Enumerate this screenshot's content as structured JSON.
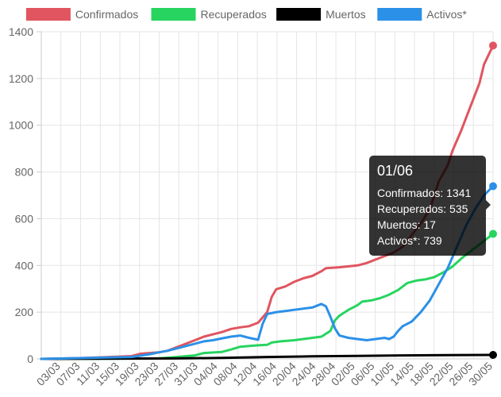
{
  "chart_data": {
    "type": "line",
    "ylim": [
      0,
      1400
    ],
    "y_ticks": [
      0,
      200,
      400,
      600,
      800,
      1000,
      1200,
      1400
    ],
    "x_tick_labels": [
      "03/03",
      "07/03",
      "11/03",
      "15/03",
      "19/03",
      "23/03",
      "27/03",
      "31/03",
      "04/04",
      "08/04",
      "12/04",
      "16/04",
      "20/04",
      "24/04",
      "28/04",
      "02/05",
      "06/05",
      "10/05",
      "14/05",
      "18/05",
      "22/05",
      "26/05",
      "30/05"
    ],
    "grid": true,
    "legend_position": "top",
    "series": [
      {
        "name": "Confirmados",
        "color": "#e0555f",
        "points": [
          [
            0,
            0
          ],
          [
            8,
            3
          ],
          [
            14,
            7
          ],
          [
            20,
            12
          ],
          [
            22,
            22
          ],
          [
            26,
            28
          ],
          [
            28,
            35
          ],
          [
            30,
            50
          ],
          [
            32,
            65
          ],
          [
            34,
            80
          ],
          [
            36,
            95
          ],
          [
            38,
            105
          ],
          [
            40,
            115
          ],
          [
            42,
            128
          ],
          [
            44,
            135
          ],
          [
            46,
            140
          ],
          [
            48,
            155
          ],
          [
            50,
            200
          ],
          [
            51,
            265
          ],
          [
            52,
            298
          ],
          [
            54,
            310
          ],
          [
            56,
            330
          ],
          [
            58,
            345
          ],
          [
            60,
            355
          ],
          [
            62,
            375
          ],
          [
            63,
            388
          ],
          [
            66,
            392
          ],
          [
            70,
            400
          ],
          [
            72,
            410
          ],
          [
            74,
            425
          ],
          [
            76,
            440
          ],
          [
            78,
            455
          ],
          [
            80,
            480
          ],
          [
            82,
            530
          ],
          [
            84,
            580
          ],
          [
            86,
            640
          ],
          [
            87,
            700
          ],
          [
            88,
            760
          ],
          [
            90,
            830
          ],
          [
            91,
            890
          ],
          [
            93,
            980
          ],
          [
            95,
            1080
          ],
          [
            97,
            1180
          ],
          [
            98,
            1260
          ],
          [
            100,
            1341
          ]
        ]
      },
      {
        "name": "Recuperados",
        "color": "#27d45f",
        "points": [
          [
            0,
            0
          ],
          [
            26,
            2
          ],
          [
            30,
            8
          ],
          [
            34,
            15
          ],
          [
            36,
            25
          ],
          [
            40,
            30
          ],
          [
            42,
            40
          ],
          [
            44,
            52
          ],
          [
            46,
            55
          ],
          [
            48,
            58
          ],
          [
            50,
            60
          ],
          [
            51,
            70
          ],
          [
            53,
            75
          ],
          [
            56,
            80
          ],
          [
            58,
            85
          ],
          [
            60,
            90
          ],
          [
            62,
            95
          ],
          [
            64,
            120
          ],
          [
            65,
            165
          ],
          [
            66,
            185
          ],
          [
            68,
            210
          ],
          [
            70,
            230
          ],
          [
            71,
            245
          ],
          [
            73,
            250
          ],
          [
            75,
            260
          ],
          [
            77,
            275
          ],
          [
            79,
            295
          ],
          [
            81,
            325
          ],
          [
            83,
            335
          ],
          [
            85,
            340
          ],
          [
            87,
            350
          ],
          [
            89,
            370
          ],
          [
            91,
            395
          ],
          [
            93,
            430
          ],
          [
            95,
            460
          ],
          [
            97,
            490
          ],
          [
            100,
            535
          ]
        ]
      },
      {
        "name": "Muertos",
        "color": "#000000",
        "points": [
          [
            0,
            0
          ],
          [
            30,
            2
          ],
          [
            40,
            4
          ],
          [
            50,
            8
          ],
          [
            60,
            11
          ],
          [
            70,
            13
          ],
          [
            80,
            15
          ],
          [
            90,
            16
          ],
          [
            100,
            17
          ]
        ]
      },
      {
        "name": "Activos*",
        "color": "#2b90e8",
        "points": [
          [
            0,
            0
          ],
          [
            20,
            8
          ],
          [
            24,
            20
          ],
          [
            26,
            28
          ],
          [
            28,
            35
          ],
          [
            30,
            45
          ],
          [
            32,
            55
          ],
          [
            34,
            65
          ],
          [
            36,
            75
          ],
          [
            38,
            80
          ],
          [
            40,
            88
          ],
          [
            42,
            95
          ],
          [
            44,
            100
          ],
          [
            46,
            90
          ],
          [
            48,
            82
          ],
          [
            49,
            150
          ],
          [
            50,
            192
          ],
          [
            52,
            200
          ],
          [
            54,
            205
          ],
          [
            56,
            210
          ],
          [
            58,
            215
          ],
          [
            60,
            220
          ],
          [
            62,
            235
          ],
          [
            63,
            225
          ],
          [
            64,
            180
          ],
          [
            65,
            130
          ],
          [
            66,
            100
          ],
          [
            68,
            90
          ],
          [
            70,
            85
          ],
          [
            72,
            80
          ],
          [
            74,
            85
          ],
          [
            76,
            90
          ],
          [
            77,
            85
          ],
          [
            78,
            95
          ],
          [
            79,
            120
          ],
          [
            80,
            140
          ],
          [
            82,
            160
          ],
          [
            84,
            200
          ],
          [
            86,
            250
          ],
          [
            88,
            320
          ],
          [
            90,
            390
          ],
          [
            92,
            480
          ],
          [
            94,
            570
          ],
          [
            96,
            640
          ],
          [
            98,
            700
          ],
          [
            100,
            739
          ]
        ]
      }
    ],
    "tooltip": {
      "title": "01/06",
      "lines": [
        "Confirmados: 1341",
        "Recuperados: 535",
        "Muertos: 17",
        "Activos*: 739"
      ]
    }
  }
}
